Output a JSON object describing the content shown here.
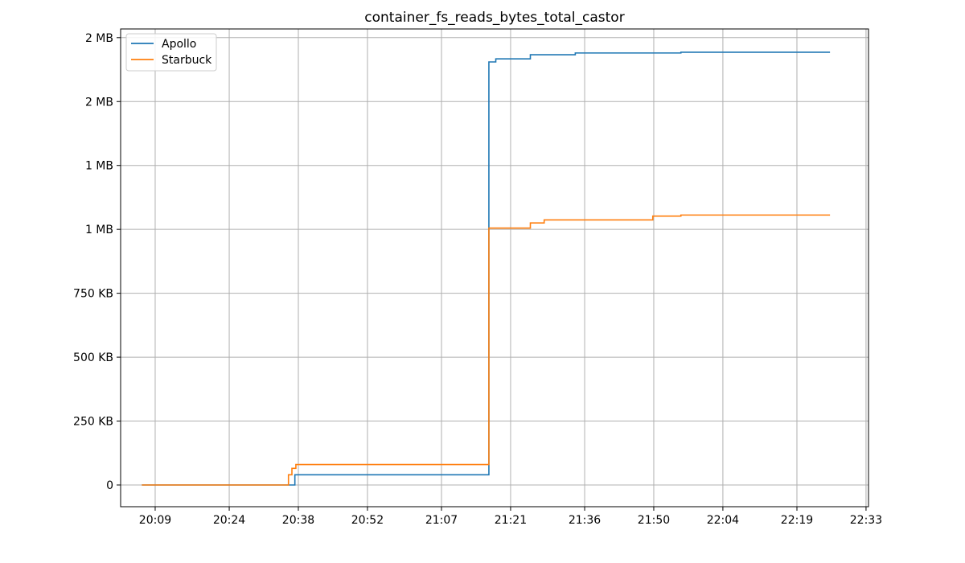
{
  "chart_data": {
    "type": "line",
    "title": "container_fs_reads_bytes_total_castor",
    "xlabel": "",
    "ylabel": "",
    "x_unit": "minutes of day (20:00 = 1200)",
    "x_ticks": [
      {
        "value": 1209,
        "label": "20:09"
      },
      {
        "value": 1224,
        "label": "20:24"
      },
      {
        "value": 1238,
        "label": "20:38"
      },
      {
        "value": 1252,
        "label": "20:52"
      },
      {
        "value": 1267,
        "label": "21:07"
      },
      {
        "value": 1281,
        "label": "21:21"
      },
      {
        "value": 1296,
        "label": "21:36"
      },
      {
        "value": 1310,
        "label": "21:50"
      },
      {
        "value": 1324,
        "label": "22:04"
      },
      {
        "value": 1339,
        "label": "22:19"
      },
      {
        "value": 1353,
        "label": "22:33"
      }
    ],
    "y_ticks": [
      {
        "value": 0,
        "label": "0"
      },
      {
        "value": 250,
        "label": "250 KB"
      },
      {
        "value": 500,
        "label": "500 KB"
      },
      {
        "value": 750,
        "label": "750 KB"
      },
      {
        "value": 1000,
        "label": "1 MB"
      },
      {
        "value": 1250,
        "label": "1 MB"
      },
      {
        "value": 1500,
        "label": "2 MB"
      },
      {
        "value": 1750,
        "label": "2 MB"
      }
    ],
    "xlim": [
      1202,
      1353.5
    ],
    "ylim": [
      -85,
      1784
    ],
    "grid": true,
    "legend": "top-left",
    "series": [
      {
        "name": "Apollo",
        "color": "#1f77b4",
        "step": true,
        "x": [
          1206.3,
          1236.3,
          1237.3,
          1276.5,
          1276.6,
          1278.0,
          1285.0,
          1294.1,
          1315.5,
          1345.7
        ],
        "y": [
          0,
          0,
          40,
          40,
          1655,
          1667,
          1683,
          1690,
          1693,
          1693
        ]
      },
      {
        "name": "Starbuck",
        "color": "#ff7f0e",
        "step": true,
        "x": [
          1206.3,
          1235.5,
          1236.0,
          1236.7,
          1237.5,
          1276.5,
          1276.6,
          1285.0,
          1287.8,
          1309.8,
          1315.5,
          1345.7
        ],
        "y": [
          0,
          0,
          40,
          65,
          80,
          80,
          1005,
          1025,
          1037,
          1052,
          1056,
          1056
        ]
      }
    ]
  }
}
